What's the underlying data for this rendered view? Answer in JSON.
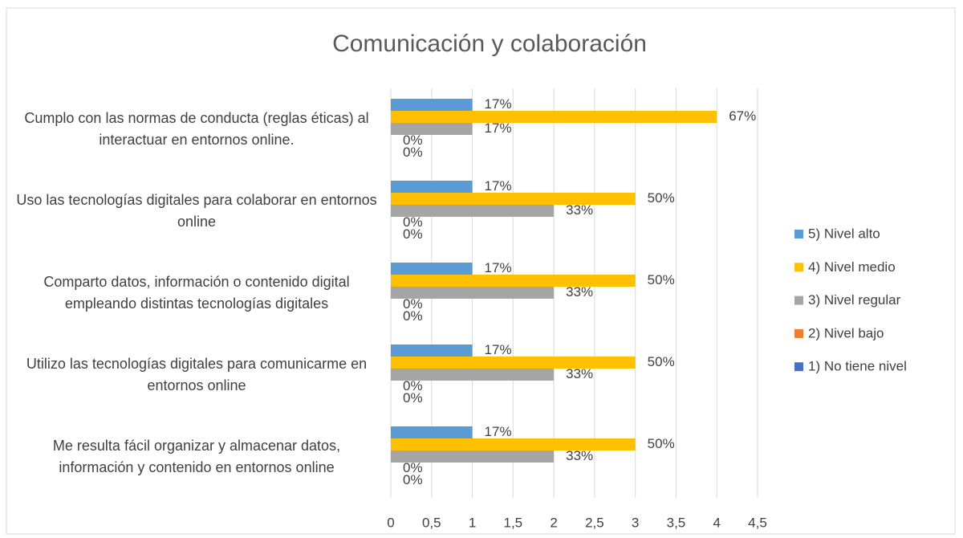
{
  "chart_data": {
    "type": "bar",
    "orientation": "horizontal",
    "title": "Comunicación y colaboración",
    "categories": [
      "Cumplo con las normas de conducta (reglas éticas) al interactuar en entornos online.",
      "Uso las tecnologías digitales para colaborar en entornos online",
      "Comparto datos, información o contenido digital empleando distintas tecnologías digitales",
      "Utilizo las tecnologías digitales para comunicarme en entornos online",
      "Me resulta fácil organizar y almacenar datos, información y contenido en entornos online"
    ],
    "series": [
      {
        "name": "5) Nivel alto",
        "color": "#5b9bd5",
        "values": [
          1,
          1,
          1,
          1,
          1
        ],
        "value_labels": [
          "17%",
          "17%",
          "17%",
          "17%",
          "17%"
        ]
      },
      {
        "name": "4) Nivel medio",
        "color": "#ffc000",
        "values": [
          4,
          3,
          3,
          3,
          3
        ],
        "value_labels": [
          "67%",
          "50%",
          "50%",
          "50%",
          "50%"
        ]
      },
      {
        "name": "3) Nivel regular",
        "color": "#a5a5a5",
        "values": [
          1,
          2,
          2,
          2,
          2
        ],
        "value_labels": [
          "17%",
          "33%",
          "33%",
          "33%",
          "33%"
        ]
      },
      {
        "name": "2) Nivel bajo",
        "color": "#ed7d31",
        "values": [
          0,
          0,
          0,
          0,
          0
        ],
        "value_labels": [
          "0%",
          "0%",
          "0%",
          "0%",
          "0%"
        ]
      },
      {
        "name": "1) No tiene nivel",
        "color": "#4472c4",
        "values": [
          0,
          0,
          0,
          0,
          0
        ],
        "value_labels": [
          "0%",
          "0%",
          "0%",
          "0%",
          "0%"
        ]
      }
    ],
    "xlim": [
      0,
      4.5
    ],
    "xticks": [
      0,
      {
        "value": 0.5,
        "label": "0,5"
      },
      1,
      {
        "value": 1.5,
        "label": "1,5"
      },
      2,
      {
        "value": 2.5,
        "label": "2,5"
      },
      3,
      {
        "value": 3.5,
        "label": "3,5"
      },
      4,
      {
        "value": 4.5,
        "label": "4,5"
      }
    ],
    "grid": true,
    "legend": "right"
  }
}
